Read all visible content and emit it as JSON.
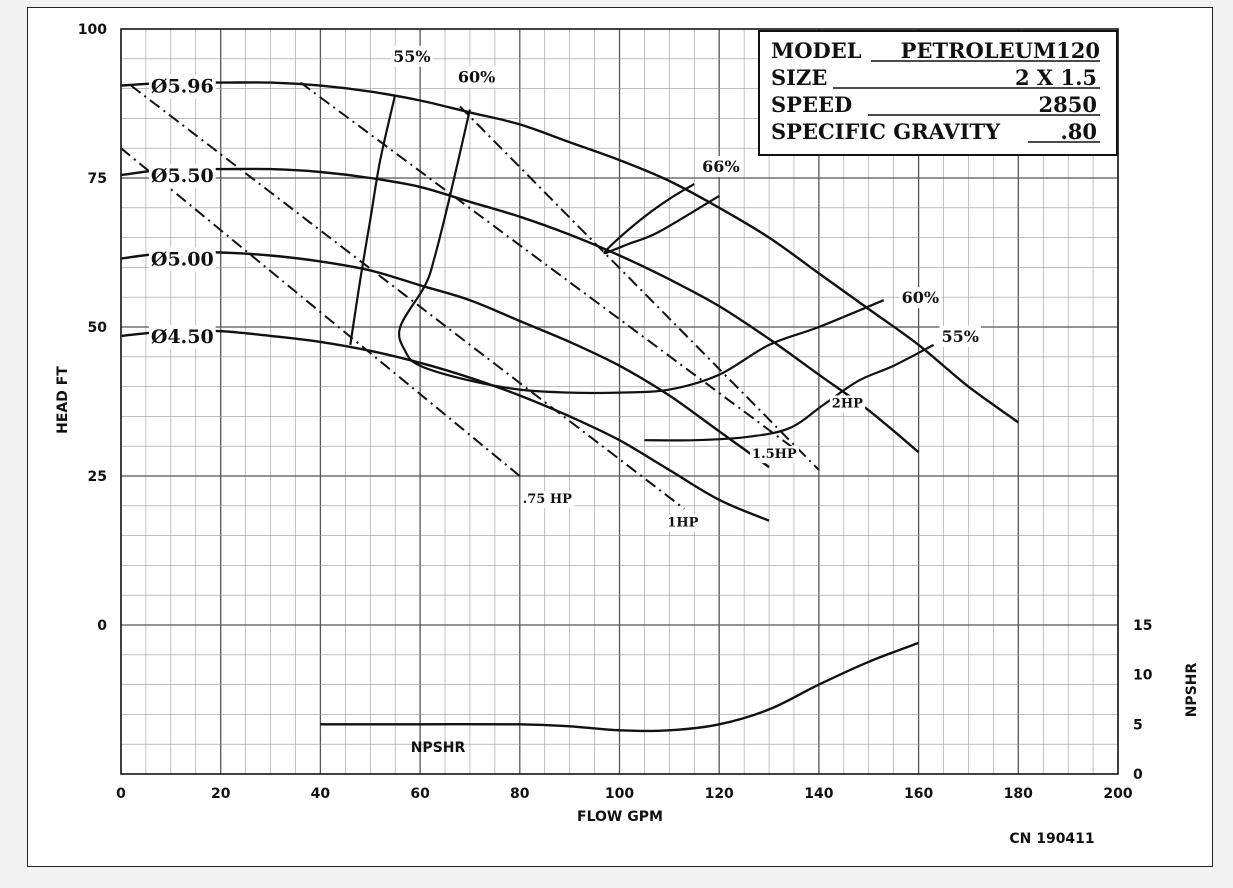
{
  "chart_data": {
    "type": "line",
    "xlabel": "FLOW GPM",
    "ylabel": "HEAD FT",
    "y2label": "NPSHR",
    "npsh_label": "NPSHR",
    "xlim": [
      0,
      200
    ],
    "ylim": [
      -25,
      100
    ],
    "y2lim": [
      0,
      15
    ],
    "x_ticks": [
      "0",
      "20",
      "40",
      "60",
      "80",
      "100",
      "120",
      "140",
      "160",
      "180",
      "200"
    ],
    "y_ticks": [
      "0",
      "25",
      "50",
      "75",
      "100"
    ],
    "y2_ticks": [
      "0",
      "5",
      "10",
      "15"
    ],
    "grid": true,
    "info": {
      "model_label": "MODEL",
      "model_value": "PETROLEUM120",
      "size_label": "SIZE",
      "size_value": "2 X 1.5",
      "speed_label": "SPEED",
      "speed_value": "2850",
      "sg_label": "SPECIFIC GRAVITY",
      "sg_value": ".80"
    },
    "footer_code": "CN 190411",
    "impellers": [
      {
        "name": "Ø5.96",
        "x": [
          0,
          10,
          20,
          30,
          40,
          50,
          60,
          70,
          80,
          90,
          100,
          110,
          120,
          130,
          140,
          150,
          160,
          170,
          180
        ],
        "y": [
          90.5,
          91,
          91,
          91,
          90.5,
          89.5,
          88,
          86,
          84,
          81,
          78,
          74.5,
          70,
          65,
          59,
          53,
          47,
          40,
          34
        ]
      },
      {
        "name": "Ø5.50",
        "x": [
          0,
          10,
          20,
          30,
          40,
          50,
          60,
          70,
          80,
          90,
          100,
          110,
          120,
          130,
          140,
          150,
          160
        ],
        "y": [
          75.5,
          76.5,
          76.5,
          76.5,
          76,
          75,
          73.5,
          71,
          68.5,
          65.5,
          62,
          58,
          53.5,
          48,
          42,
          36,
          29
        ]
      },
      {
        "name": "Ø5.00",
        "x": [
          0,
          10,
          20,
          30,
          40,
          50,
          60,
          70,
          80,
          90,
          100,
          110,
          120,
          130
        ],
        "y": [
          61.5,
          62.5,
          62.5,
          62,
          61,
          59.5,
          57,
          54.5,
          51,
          47.5,
          43.5,
          38.5,
          32.5,
          26.5
        ]
      },
      {
        "name": "Ø4.50",
        "x": [
          0,
          10,
          20,
          30,
          40,
          50,
          60,
          70,
          80,
          90,
          100,
          110,
          120,
          130
        ],
        "y": [
          48.5,
          49.3,
          49.3,
          48.5,
          47.5,
          46,
          44,
          41.5,
          38.5,
          35,
          31,
          26,
          21,
          17.5
        ]
      }
    ],
    "efficiency": [
      {
        "name": "55%",
        "label_x": 59,
        "label_y": 94.5,
        "x": [
          46,
          48,
          50,
          52,
          55
        ],
        "y": [
          47,
          58,
          68,
          78,
          89
        ]
      },
      {
        "name": "60%",
        "label_x": 72,
        "label_y": 91,
        "x": [
          70,
          66,
          63,
          61,
          56,
          57,
          60,
          70,
          80,
          90,
          100,
          110,
          120,
          130,
          140,
          153
        ],
        "y": [
          86.5,
          72,
          62,
          57,
          50,
          46,
          43.5,
          41,
          39.5,
          39,
          39,
          39.5,
          42,
          47,
          50,
          54.5
        ]
      },
      {
        "name": "66%",
        "label_x": 121,
        "label_y": 76,
        "x": [
          115,
          110,
          105,
          100,
          97,
          99,
          102,
          108,
          120
        ],
        "y": [
          74,
          71.5,
          68.5,
          65,
          62.5,
          63,
          64,
          66,
          72
        ]
      },
      {
        "name": "55%",
        "label_x": 169,
        "label_y": 47.5,
        "x": [
          105,
          115,
          125,
          134,
          141,
          148,
          155,
          163
        ],
        "y": [
          31,
          31,
          31.5,
          33,
          37,
          41,
          43.5,
          47
        ]
      },
      {
        "name": "60%",
        "label_x": 161,
        "label_y": 54,
        "x": [],
        "y": []
      }
    ],
    "power": [
      {
        "name": ".75 HP",
        "label_x": 85,
        "label_y": 20.5,
        "x": [
          0,
          80
        ],
        "y": [
          80,
          25
        ]
      },
      {
        "name": "1HP",
        "label_x": 114,
        "label_y": 16.5,
        "x": [
          2,
          113
        ],
        "y": [
          90.5,
          19.5
        ]
      },
      {
        "name": "1.5HP",
        "label_x": 131,
        "label_y": 28,
        "x": [
          36,
          136
        ],
        "y": [
          91,
          29
        ]
      },
      {
        "name": "2HP",
        "label_x": 147,
        "label_y": 36.5,
        "x": [
          68,
          140
        ],
        "y": [
          87,
          26
        ]
      }
    ],
    "npsh": {
      "x": [
        40,
        60,
        80,
        90,
        100,
        110,
        120,
        130,
        140,
        150,
        160
      ],
      "y": [
        5,
        5,
        5,
        4.8,
        4.4,
        4.4,
        5,
        6.5,
        9,
        11.3,
        13.2
      ]
    }
  },
  "colors": {
    "line": "#111111",
    "grid_major": "#555555",
    "grid_minor": "#999999",
    "background": "#ffffff"
  }
}
